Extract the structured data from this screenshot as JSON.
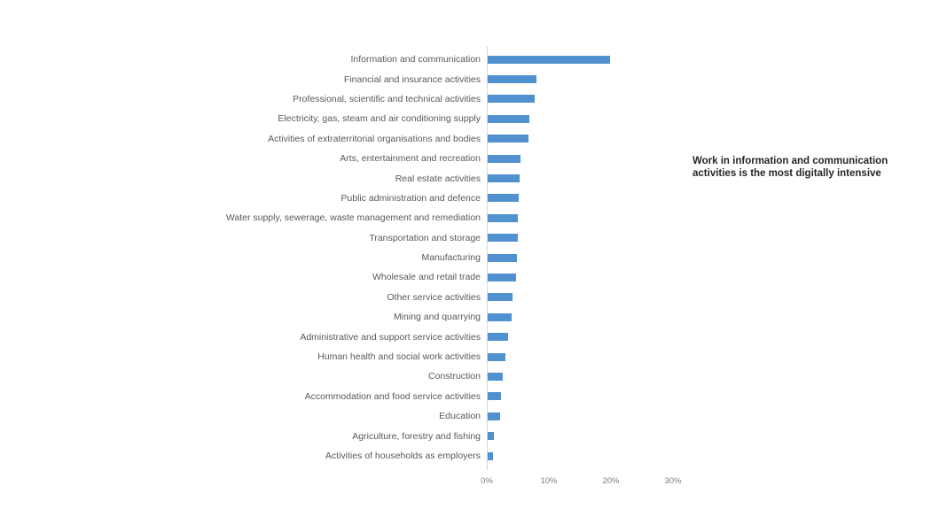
{
  "chart_data": {
    "type": "bar",
    "orientation": "horizontal",
    "title": "",
    "xlabel": "",
    "ylabel": "",
    "categories": [
      "Information and communication",
      "Financial and insurance activities",
      "Professional, scientific and technical activities",
      "Electricity, gas, steam and air conditioning supply",
      "Activities of extraterritorial organisations and bodies",
      "Arts, entertainment and recreation",
      "Real estate activities",
      "Public administration and defence",
      "Water supply, sewerage, waste management and remediation",
      "Transportation and storage",
      "Manufacturing",
      "Wholesale and retail trade",
      "Other service activities",
      "Mining and quarrying",
      "Administrative and support service activities",
      "Human health and social work activities",
      "Construction",
      "Accommodation and food service activities",
      "Education",
      "Agriculture, forestry and fishing",
      "Activities of households as employers"
    ],
    "values": [
      19.7,
      7.9,
      7.5,
      6.7,
      6.5,
      5.3,
      5.1,
      5.0,
      4.9,
      4.9,
      4.7,
      4.5,
      4.0,
      3.9,
      3.3,
      2.8,
      2.4,
      2.1,
      2.0,
      1.0,
      0.9
    ],
    "unit": "%",
    "x_ticks": [
      "0%",
      "10%",
      "20%",
      "30%"
    ],
    "x_tick_values": [
      0,
      10,
      20,
      30
    ],
    "xlim": [
      0,
      30
    ],
    "grid": "off",
    "legend": "none",
    "bar_color": "#5291cf",
    "axis_color": "#d9d9d9",
    "label_color": "#595959",
    "tick_label_color": "#7f7f7f"
  },
  "annotation": {
    "text": "Work in information and communication activities is the most digitally intensive"
  }
}
